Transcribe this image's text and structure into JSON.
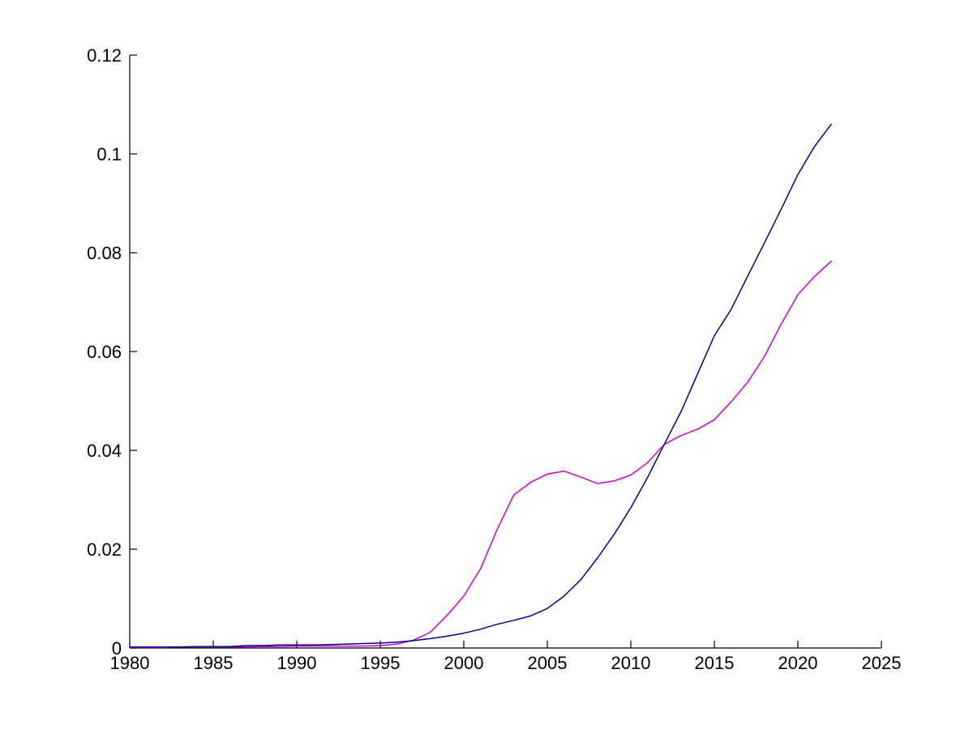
{
  "figure": {
    "background_color": "#ffffff",
    "axis_color": "#000000",
    "title": ""
  },
  "chart_data": {
    "type": "line",
    "title": "",
    "xlabel": "",
    "ylabel": "",
    "grid": false,
    "legend": "none",
    "xlim": [
      1980,
      2025
    ],
    "ylim": [
      0,
      0.12
    ],
    "x_ticks": [
      1980,
      1985,
      1990,
      1995,
      2000,
      2005,
      2010,
      2015,
      2020,
      2025
    ],
    "x_tick_labels": [
      "1980",
      "1985",
      "1990",
      "1995",
      "2000",
      "2005",
      "2010",
      "2015",
      "2020",
      "2025"
    ],
    "y_ticks": [
      0,
      0.02,
      0.04,
      0.06,
      0.08,
      0.1,
      0.12
    ],
    "y_tick_labels": [
      "0",
      "0.02",
      "0.04",
      "0.06",
      "0.08",
      "0.1",
      "0.12"
    ],
    "x": [
      1980,
      1981,
      1982,
      1983,
      1984,
      1985,
      1986,
      1987,
      1988,
      1989,
      1990,
      1991,
      1992,
      1993,
      1994,
      1995,
      1996,
      1997,
      1998,
      1999,
      2000,
      2001,
      2002,
      2003,
      2004,
      2005,
      2006,
      2007,
      2008,
      2009,
      2010,
      2011,
      2012,
      2013,
      2014,
      2015,
      2016,
      2017,
      2018,
      2019,
      2020,
      2021,
      2022
    ],
    "series": [
      {
        "name": "dark-blue-line",
        "color": "#00008b",
        "values": [
          0.0002,
          0.0002,
          0.0002,
          0.0002,
          0.0003,
          0.0003,
          0.0003,
          0.0005,
          0.0005,
          0.0006,
          0.0006,
          0.0006,
          0.0007,
          0.0008,
          0.0009,
          0.001,
          0.0012,
          0.0015,
          0.0019,
          0.0024,
          0.003,
          0.0038,
          0.0048,
          0.0056,
          0.0065,
          0.008,
          0.0105,
          0.0138,
          0.0182,
          0.023,
          0.0284,
          0.0345,
          0.0412,
          0.0478,
          0.0555,
          0.0632,
          0.0685,
          0.0753,
          0.082,
          0.0888,
          0.0958,
          0.1015,
          0.106
        ]
      },
      {
        "name": "magenta-line",
        "color": "#cc00cc",
        "values": [
          0.0001,
          0.0001,
          0.0001,
          0.0002,
          0.0002,
          0.0002,
          0.0002,
          0.0002,
          0.0003,
          0.0003,
          0.0004,
          0.0004,
          0.0004,
          0.0004,
          0.0004,
          0.0005,
          0.0008,
          0.0016,
          0.0032,
          0.0066,
          0.0105,
          0.016,
          0.024,
          0.031,
          0.0335,
          0.0352,
          0.0358,
          0.0346,
          0.0333,
          0.0338,
          0.035,
          0.0375,
          0.0412,
          0.043,
          0.0443,
          0.0462,
          0.0498,
          0.0538,
          0.059,
          0.0655,
          0.0715,
          0.0752,
          0.0783
        ]
      }
    ]
  }
}
